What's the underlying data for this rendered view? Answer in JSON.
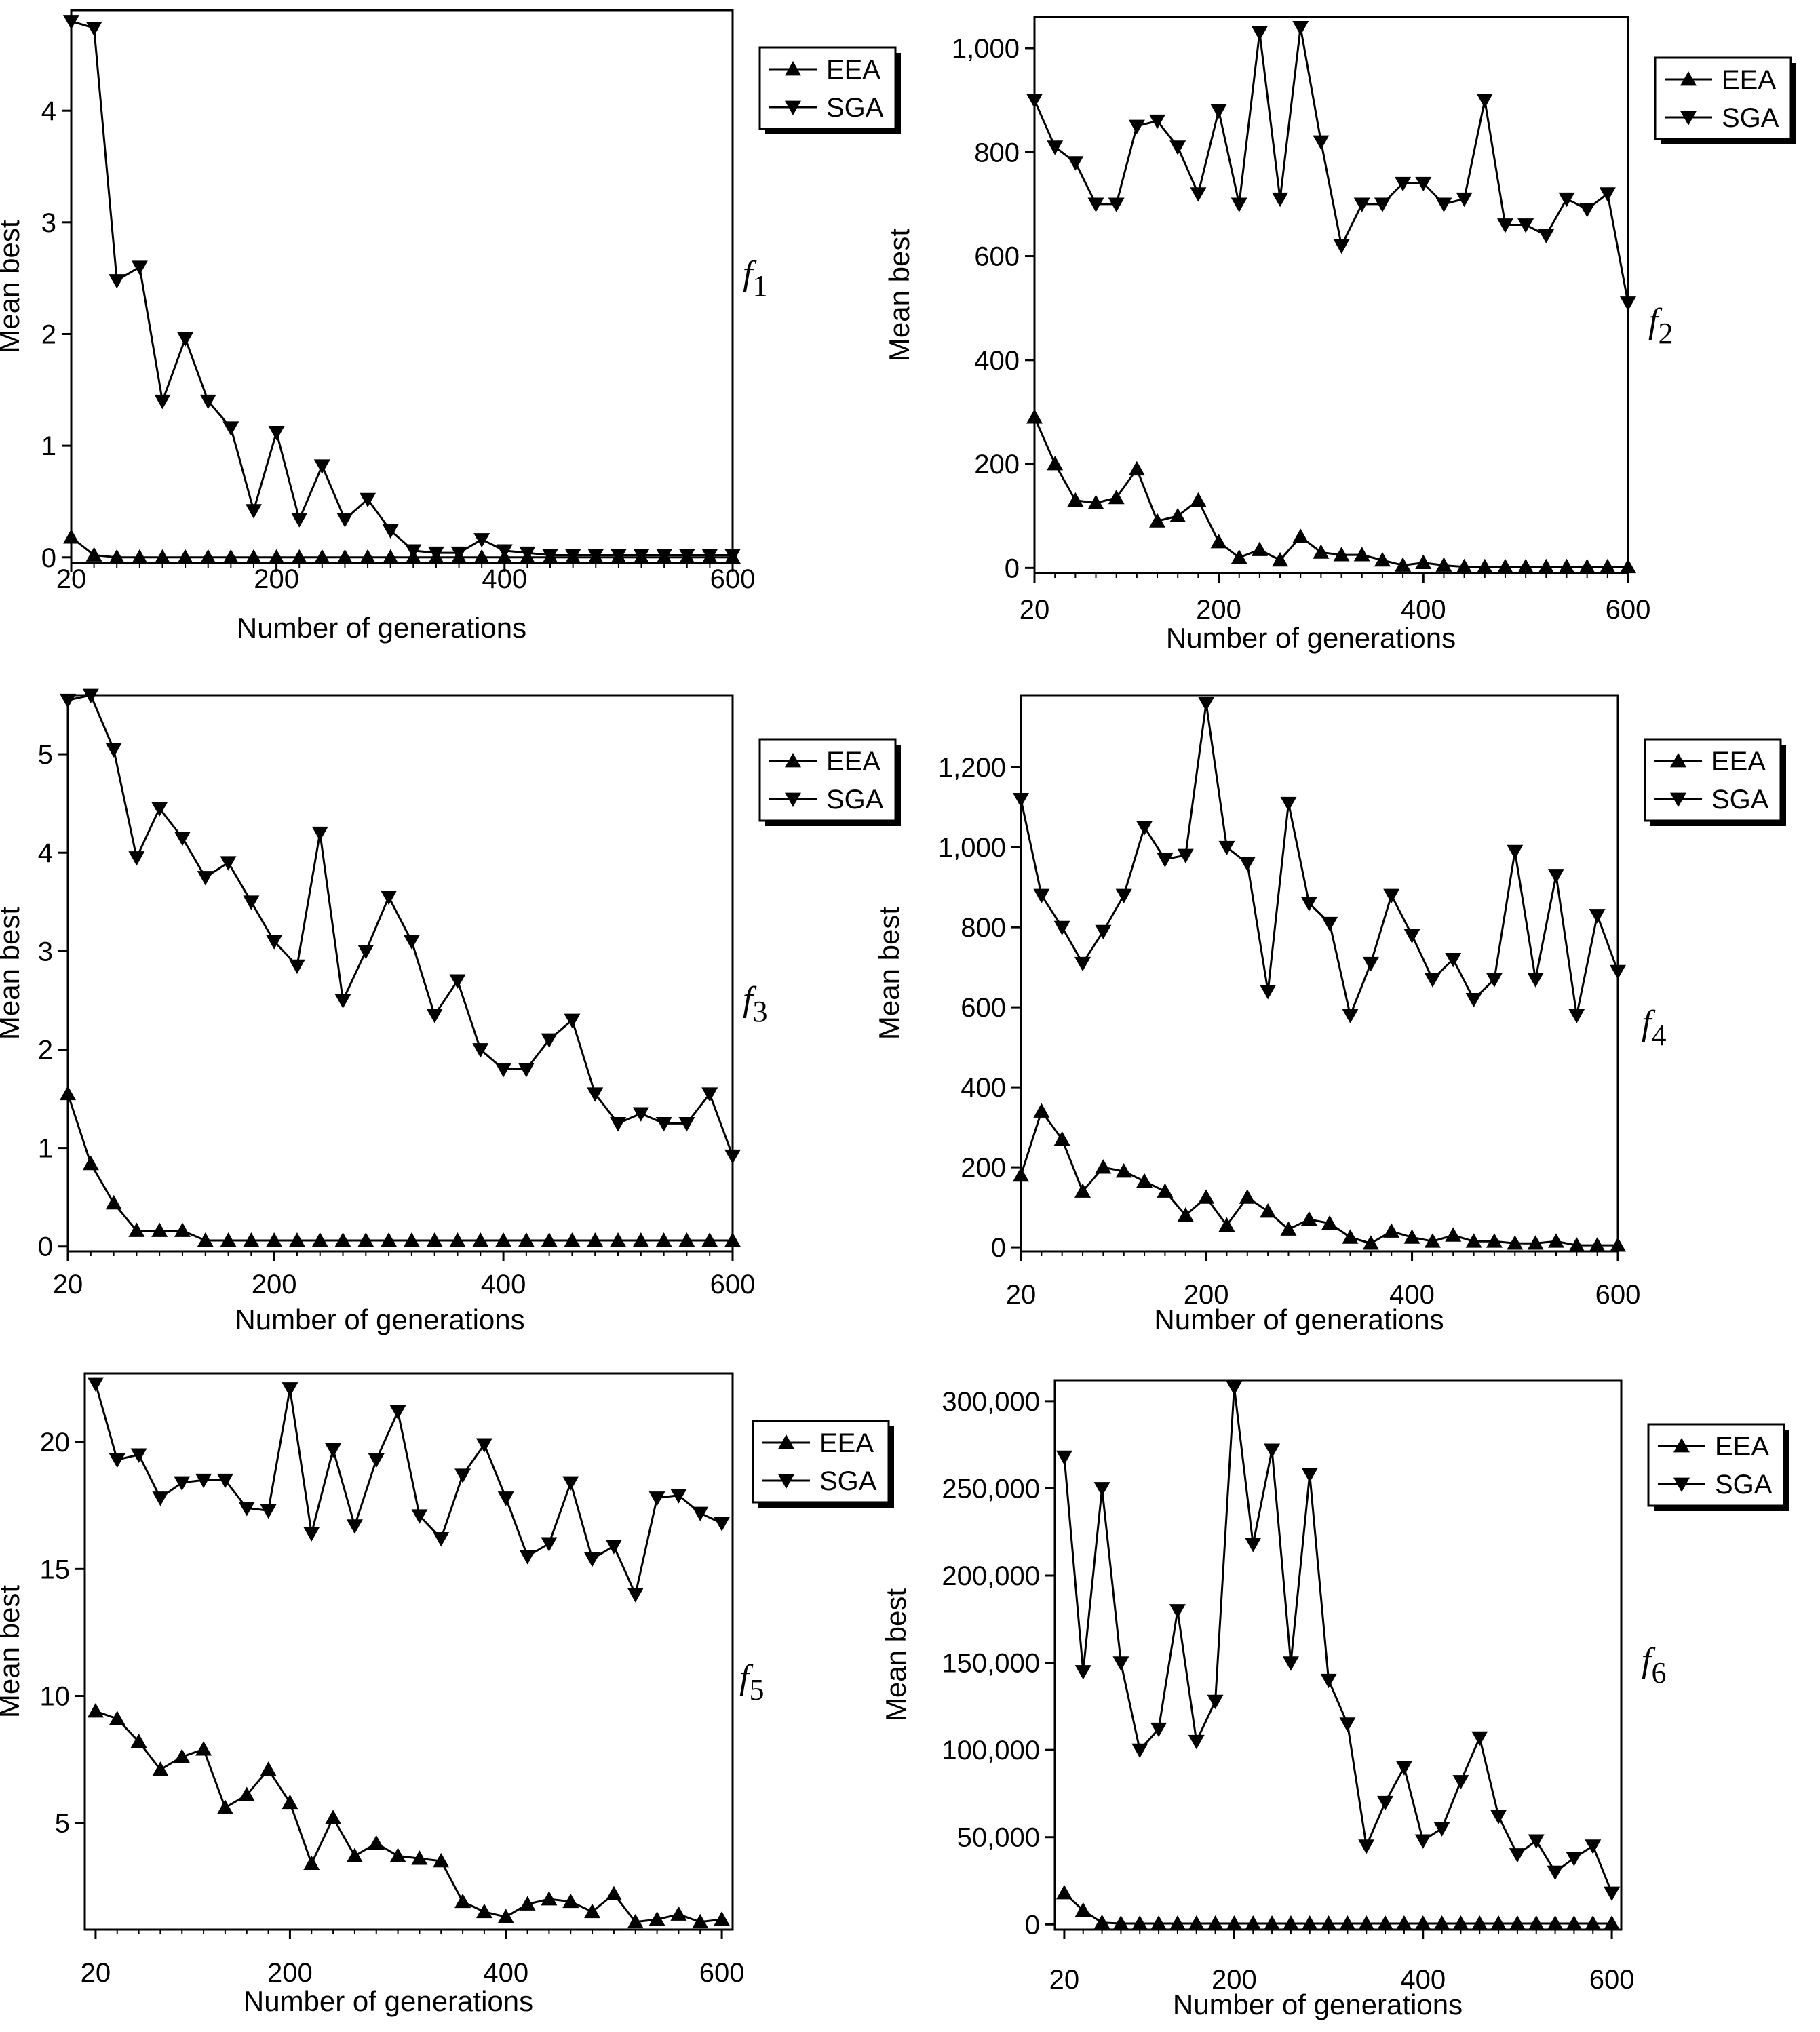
{
  "figure": {
    "x_label": "Number of generations",
    "y_label": "Mean best",
    "legend": [
      "EEA",
      "SGA"
    ]
  },
  "chart_data": [
    {
      "type": "line",
      "function_label": "f",
      "function_sub": "1",
      "xlabel": "Number of generations",
      "ylabel": "Mean best",
      "xlim": [
        20,
        600
      ],
      "ylim": [
        -0.05,
        4.9
      ],
      "x_ticks": [
        20,
        200,
        400,
        600
      ],
      "x_tick_labels": [
        "20",
        "200",
        "400",
        "600"
      ],
      "y_ticks": [
        0,
        1,
        2,
        3,
        4
      ],
      "y_tick_labels": [
        "0",
        "1",
        "2",
        "3",
        "4"
      ],
      "grid": false,
      "legend_position": "top-right",
      "x": [
        20,
        40,
        60,
        80,
        100,
        120,
        140,
        160,
        180,
        200,
        220,
        240,
        260,
        280,
        300,
        320,
        340,
        360,
        380,
        400,
        420,
        440,
        460,
        480,
        500,
        520,
        540,
        560,
        580,
        600
      ],
      "series": [
        {
          "name": "EEA",
          "marker": "triangle-up",
          "values": [
            0.18,
            0.02,
            0,
            0,
            0,
            0,
            0,
            0,
            0,
            0,
            0,
            0,
            0,
            0,
            0,
            0,
            0,
            0,
            0,
            0,
            0,
            0,
            0,
            0,
            0,
            0,
            0,
            0,
            0,
            0
          ]
        },
        {
          "name": "SGA",
          "marker": "triangle-down",
          "values": [
            4.8,
            4.74,
            2.48,
            2.6,
            1.4,
            1.96,
            1.4,
            1.16,
            0.42,
            1.12,
            0.34,
            0.82,
            0.34,
            0.52,
            0.24,
            0.06,
            0.04,
            0.04,
            0.16,
            0.06,
            0.04,
            0.02,
            0.02,
            0.02,
            0.02,
            0.02,
            0.02,
            0.02,
            0.02,
            0.02
          ]
        }
      ]
    },
    {
      "type": "line",
      "function_label": "f",
      "function_sub": "2",
      "xlabel": "Number of generations",
      "ylabel": "Mean best",
      "xlim": [
        20,
        600
      ],
      "ylim": [
        -10,
        1060
      ],
      "x_ticks": [
        20,
        200,
        400,
        600
      ],
      "x_tick_labels": [
        "20",
        "200",
        "400",
        "600"
      ],
      "y_ticks": [
        0,
        200,
        400,
        600,
        800,
        1000
      ],
      "y_tick_labels": [
        "0",
        "200",
        "400",
        "600",
        "800",
        "1,000"
      ],
      "grid": false,
      "legend_position": "top-right",
      "x": [
        20,
        40,
        60,
        80,
        100,
        120,
        140,
        160,
        180,
        200,
        220,
        240,
        260,
        280,
        300,
        320,
        340,
        360,
        380,
        400,
        420,
        440,
        460,
        480,
        500,
        520,
        540,
        560,
        580,
        600
      ],
      "series": [
        {
          "name": "EEA",
          "marker": "triangle-up",
          "values": [
            290,
            200,
            130,
            125,
            135,
            190,
            90,
            100,
            130,
            50,
            20,
            35,
            15,
            60,
            30,
            25,
            25,
            15,
            5,
            10,
            5,
            2,
            2,
            2,
            2,
            2,
            2,
            2,
            2,
            2
          ]
        },
        {
          "name": "SGA",
          "marker": "triangle-down",
          "values": [
            900,
            810,
            780,
            700,
            700,
            850,
            860,
            810,
            720,
            880,
            700,
            1030,
            710,
            1040,
            820,
            620,
            700,
            700,
            740,
            740,
            700,
            710,
            900,
            660,
            660,
            640,
            710,
            690,
            720,
            510
          ]
        }
      ]
    },
    {
      "type": "line",
      "function_label": "f",
      "function_sub": "3",
      "xlabel": "Number of generations",
      "ylabel": "Mean best",
      "xlim": [
        20,
        600
      ],
      "ylim": [
        -0.05,
        5.6
      ],
      "x_ticks": [
        20,
        200,
        400,
        600
      ],
      "x_tick_labels": [
        "20",
        "200",
        "400",
        "600"
      ],
      "y_ticks": [
        0,
        1,
        2,
        3,
        4,
        5
      ],
      "y_tick_labels": [
        "0",
        "1",
        "2",
        "3",
        "4",
        "5"
      ],
      "grid": false,
      "legend_position": "top-right",
      "x": [
        20,
        40,
        60,
        80,
        100,
        120,
        140,
        160,
        180,
        200,
        220,
        240,
        260,
        280,
        300,
        320,
        340,
        360,
        380,
        400,
        420,
        440,
        460,
        480,
        500,
        520,
        540,
        560,
        580,
        600
      ],
      "series": [
        {
          "name": "EEA",
          "marker": "triangle-up",
          "values": [
            1.55,
            0.84,
            0.44,
            0.16,
            0.16,
            0.16,
            0.06,
            0.06,
            0.06,
            0.06,
            0.06,
            0.06,
            0.06,
            0.06,
            0.06,
            0.06,
            0.06,
            0.06,
            0.06,
            0.06,
            0.06,
            0.06,
            0.06,
            0.06,
            0.06,
            0.06,
            0.06,
            0.06,
            0.06,
            0.06
          ]
        },
        {
          "name": "SGA",
          "marker": "triangle-down",
          "values": [
            5.55,
            5.6,
            5.05,
            3.95,
            4.45,
            4.15,
            3.75,
            3.9,
            3.5,
            3.1,
            2.85,
            4.2,
            2.5,
            3.0,
            3.55,
            3.1,
            2.35,
            2.7,
            2.0,
            1.8,
            1.8,
            2.1,
            2.3,
            1.55,
            1.25,
            1.35,
            1.25,
            1.25,
            1.55,
            0.92
          ]
        }
      ]
    },
    {
      "type": "line",
      "function_label": "f",
      "function_sub": "4",
      "xlabel": "Number of generations",
      "ylabel": "Mean best",
      "xlim": [
        20,
        600
      ],
      "ylim": [
        -10,
        1380
      ],
      "x_ticks": [
        20,
        200,
        400,
        600
      ],
      "x_tick_labels": [
        "20",
        "200",
        "400",
        "600"
      ],
      "y_ticks": [
        0,
        200,
        400,
        600,
        800,
        1000,
        1200
      ],
      "y_tick_labels": [
        "0",
        "200",
        "400",
        "600",
        "800",
        "1,000",
        "1,200"
      ],
      "grid": false,
      "legend_position": "top-right",
      "x": [
        20,
        40,
        60,
        80,
        100,
        120,
        140,
        160,
        180,
        200,
        220,
        240,
        260,
        280,
        300,
        320,
        340,
        360,
        380,
        400,
        420,
        440,
        460,
        480,
        500,
        520,
        540,
        560,
        580,
        600
      ],
      "series": [
        {
          "name": "EEA",
          "marker": "triangle-up",
          "values": [
            180,
            340,
            270,
            140,
            200,
            190,
            165,
            140,
            80,
            125,
            55,
            125,
            90,
            45,
            70,
            60,
            25,
            10,
            40,
            25,
            15,
            30,
            15,
            15,
            10,
            10,
            15,
            5,
            5,
            5
          ]
        },
        {
          "name": "SGA",
          "marker": "triangle-down",
          "values": [
            1120,
            880,
            800,
            710,
            790,
            880,
            1050,
            970,
            980,
            1360,
            1000,
            960,
            640,
            1110,
            860,
            810,
            580,
            710,
            880,
            780,
            670,
            720,
            620,
            670,
            990,
            670,
            930,
            580,
            830,
            690
          ]
        }
      ]
    },
    {
      "type": "line",
      "function_label": "f",
      "function_sub": "5",
      "xlabel": "Number of generations",
      "ylabel": "Mean best",
      "xlim": [
        10,
        610
      ],
      "ylim": [
        0.8,
        22.7
      ],
      "x_ticks": [
        20,
        200,
        400,
        600
      ],
      "x_tick_labels": [
        "20",
        "200",
        "400",
        "600"
      ],
      "y_ticks": [
        5,
        10,
        15,
        20
      ],
      "y_tick_labels": [
        "5",
        "10",
        "15",
        "20"
      ],
      "grid": false,
      "legend_position": "top-right",
      "x": [
        20,
        40,
        60,
        80,
        100,
        120,
        140,
        160,
        180,
        200,
        220,
        240,
        260,
        280,
        300,
        320,
        340,
        360,
        380,
        400,
        420,
        440,
        460,
        480,
        500,
        520,
        540,
        560,
        580,
        600
      ],
      "series": [
        {
          "name": "EEA",
          "marker": "triangle-up",
          "values": [
            9.4,
            9.1,
            8.2,
            7.1,
            7.6,
            7.9,
            5.6,
            6.1,
            7.1,
            5.8,
            3.4,
            5.2,
            3.7,
            4.2,
            3.7,
            3.6,
            3.5,
            1.9,
            1.5,
            1.3,
            1.8,
            2.0,
            1.9,
            1.5,
            2.2,
            1.1,
            1.2,
            1.4,
            1.1,
            1.2
          ]
        },
        {
          "name": "SGA",
          "marker": "triangle-down",
          "values": [
            22.3,
            19.3,
            19.5,
            17.8,
            18.4,
            18.5,
            18.5,
            17.4,
            17.3,
            22.1,
            16.4,
            19.7,
            16.7,
            19.3,
            21.2,
            17.1,
            16.2,
            18.7,
            19.9,
            17.8,
            15.5,
            16.0,
            18.4,
            15.4,
            15.9,
            14.0,
            17.8,
            17.9,
            17.2,
            16.8
          ]
        }
      ]
    },
    {
      "type": "line",
      "function_label": "f",
      "function_sub": "6",
      "xlabel": "Number of generations",
      "ylabel": "Mean best",
      "xlim": [
        10,
        610
      ],
      "ylim": [
        -3000,
        312000
      ],
      "x_ticks": [
        20,
        200,
        400,
        600
      ],
      "x_tick_labels": [
        "20",
        "200",
        "400",
        "600"
      ],
      "y_ticks": [
        0,
        50000,
        100000,
        150000,
        200000,
        250000,
        300000
      ],
      "y_tick_labels": [
        "0",
        "50,000",
        "100,000",
        "150,000",
        "200,000",
        "250,000",
        "300,000"
      ],
      "grid": false,
      "legend_position": "top-right",
      "x": [
        20,
        40,
        60,
        80,
        100,
        120,
        140,
        160,
        180,
        200,
        220,
        240,
        260,
        280,
        300,
        320,
        340,
        360,
        380,
        400,
        420,
        440,
        460,
        480,
        500,
        520,
        540,
        560,
        580,
        600
      ],
      "series": [
        {
          "name": "EEA",
          "marker": "triangle-up",
          "values": [
            18000,
            8000,
            1000,
            500,
            500,
            500,
            500,
            500,
            500,
            500,
            500,
            500,
            500,
            500,
            500,
            500,
            500,
            500,
            500,
            500,
            500,
            500,
            500,
            500,
            500,
            500,
            500,
            500,
            500,
            500
          ]
        },
        {
          "name": "SGA",
          "marker": "triangle-down",
          "values": [
            268000,
            145000,
            250000,
            150000,
            100000,
            112000,
            180000,
            105000,
            128000,
            308000,
            218000,
            272000,
            150000,
            258000,
            140000,
            115000,
            45000,
            70000,
            90000,
            48000,
            55000,
            82000,
            107000,
            62000,
            40000,
            48000,
            30000,
            38000,
            45000,
            18000
          ]
        }
      ]
    }
  ]
}
